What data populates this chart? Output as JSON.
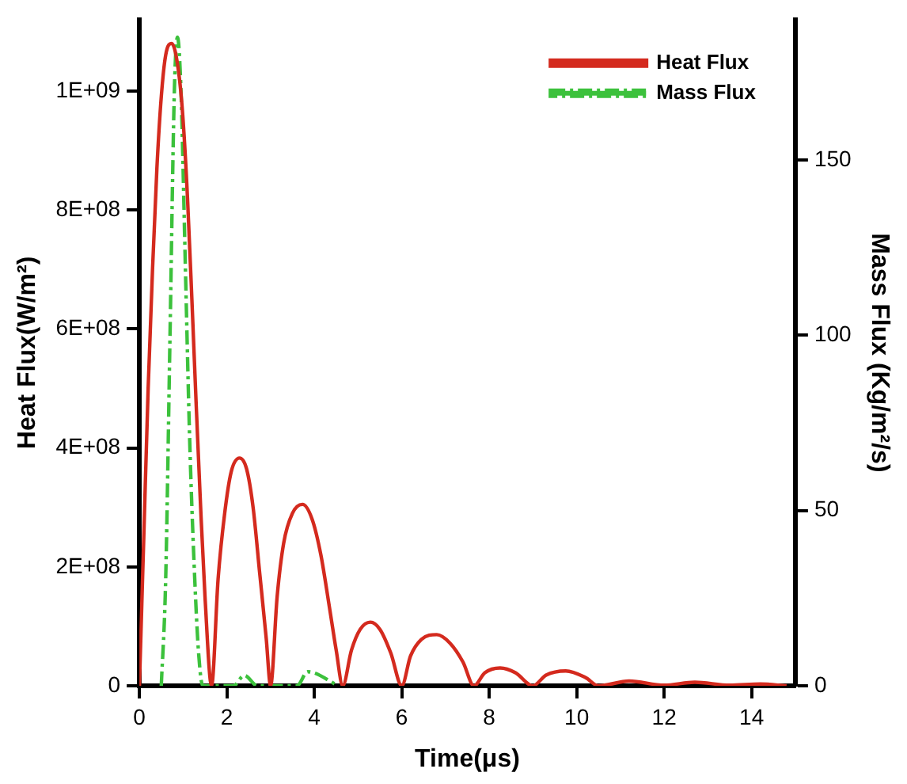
{
  "chart_data": {
    "type": "line",
    "xlabel": "Time(μs)",
    "ylabel": "Heat Flux(W/m²)",
    "y2label": "Mass Flux (Kg/m²/s)",
    "xlim": [
      0,
      15
    ],
    "xticks": [
      0,
      2,
      4,
      6,
      8,
      10,
      12,
      14
    ],
    "ylim": [
      0,
      1120000000
    ],
    "yticks": [
      {
        "value": 0,
        "label": "0"
      },
      {
        "value": 200000000,
        "label": "2E+08"
      },
      {
        "value": 400000000,
        "label": "4E+08"
      },
      {
        "value": 600000000,
        "label": "6E+08"
      },
      {
        "value": 800000000,
        "label": "8E+08"
      },
      {
        "value": 1000000000,
        "label": "1E+09"
      }
    ],
    "y2lim": [
      0,
      190
    ],
    "y2ticks": [
      0,
      50,
      100,
      150
    ],
    "grid": false,
    "legend": "top right",
    "marker": "none",
    "series": [
      {
        "name": "Heat Flux",
        "color": "#d42a1e",
        "line_style": "solid",
        "x": [
          0,
          0.1,
          0.2,
          0.3,
          0.4,
          0.5,
          0.6,
          0.74,
          0.9,
          1.0,
          1.1,
          1.2,
          1.3,
          1.4,
          1.5,
          1.65,
          1.8,
          1.95,
          2.1,
          2.29,
          2.45,
          2.6,
          2.75,
          2.9,
          3.0,
          3.15,
          3.3,
          3.5,
          3.73,
          3.95,
          4.15,
          4.35,
          4.5,
          4.65,
          4.85,
          5.05,
          5.28,
          5.5,
          5.75,
          6.0,
          6.2,
          6.45,
          6.8,
          7.1,
          7.4,
          7.65,
          7.9,
          8.25,
          8.6,
          9.0,
          9.3,
          9.75,
          10.2,
          10.5,
          11.2,
          12.0,
          12.7,
          13.5,
          14.2,
          14.8
        ],
        "values": [
          0,
          250000000,
          500000000,
          700000000,
          870000000,
          990000000,
          1060000000,
          1080000000,
          1030000000,
          950000000,
          820000000,
          650000000,
          470000000,
          300000000,
          150000000,
          0,
          180000000,
          290000000,
          360000000,
          383000000,
          365000000,
          300000000,
          190000000,
          80000000,
          0,
          150000000,
          240000000,
          290000000,
          305000000,
          280000000,
          220000000,
          130000000,
          60000000,
          0,
          60000000,
          95000000,
          107000000,
          95000000,
          55000000,
          0,
          50000000,
          78000000,
          86000000,
          72000000,
          40000000,
          0,
          22000000,
          30000000,
          22000000,
          0,
          18000000,
          25000000,
          14000000,
          0,
          8000000,
          1000000,
          6000000,
          1000000,
          3000000,
          0
        ]
      },
      {
        "name": "Mass Flux",
        "color": "#3cc13c",
        "line_style": "dashdot",
        "axis": "y2",
        "x": [
          0.5,
          0.6,
          0.7,
          0.8,
          0.87,
          0.95,
          1.05,
          1.15,
          1.25,
          1.35,
          1.45,
          2.15,
          2.4,
          2.7,
          3.6,
          3.85,
          4.55
        ],
        "values": [
          0,
          30,
          100,
          170,
          185,
          170,
          120,
          70,
          35,
          10,
          0,
          0,
          3,
          0,
          0,
          4,
          0
        ]
      }
    ]
  }
}
